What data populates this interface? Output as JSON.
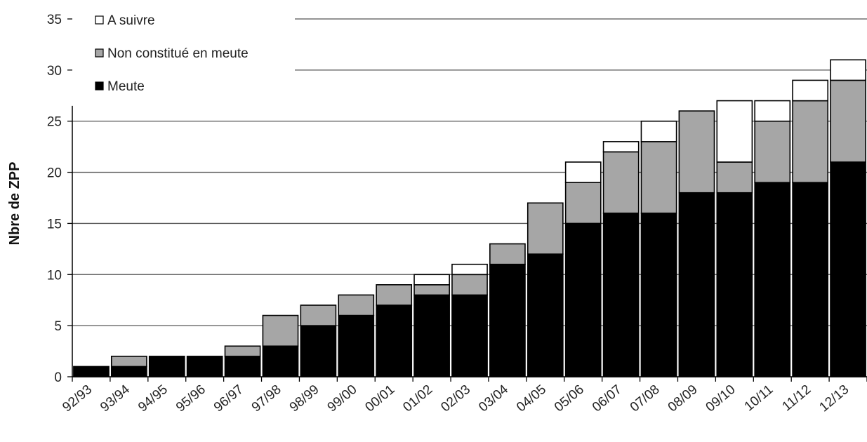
{
  "chart_data": {
    "type": "bar",
    "stacked": true,
    "title": "",
    "xlabel": "",
    "ylabel": "Nbre de ZPP",
    "ylim": [
      0,
      35
    ],
    "yticks": [
      0,
      5,
      10,
      15,
      20,
      25,
      30,
      35
    ],
    "grid": true,
    "legend_position": "top-left",
    "categories": [
      "92/93",
      "93/94",
      "94/95",
      "95/96",
      "96/97",
      "97/98",
      "98/99",
      "99/00",
      "00/01",
      "01/02",
      "02/03",
      "03/04",
      "04/05",
      "05/06",
      "06/07",
      "07/08",
      "08/09",
      "09/10",
      "10/11",
      "11/12",
      "12/13"
    ],
    "series": [
      {
        "name": "Meute",
        "color": "#000000",
        "values": [
          1,
          1,
          2,
          2,
          2,
          3,
          5,
          6,
          7,
          8,
          8,
          11,
          12,
          15,
          16,
          16,
          18,
          18,
          19,
          19,
          21
        ]
      },
      {
        "name": "Non constitué en meute",
        "color": "#a6a6a6",
        "values": [
          0,
          1,
          0,
          0,
          1,
          3,
          2,
          2,
          2,
          1,
          2,
          2,
          5,
          4,
          6,
          7,
          8,
          3,
          6,
          8,
          8
        ]
      },
      {
        "name": "A suivre",
        "color": "#ffffff",
        "values": [
          0,
          0,
          0,
          0,
          0,
          0,
          0,
          0,
          0,
          1,
          1,
          0,
          0,
          2,
          1,
          2,
          0,
          6,
          2,
          2,
          2
        ]
      }
    ]
  }
}
